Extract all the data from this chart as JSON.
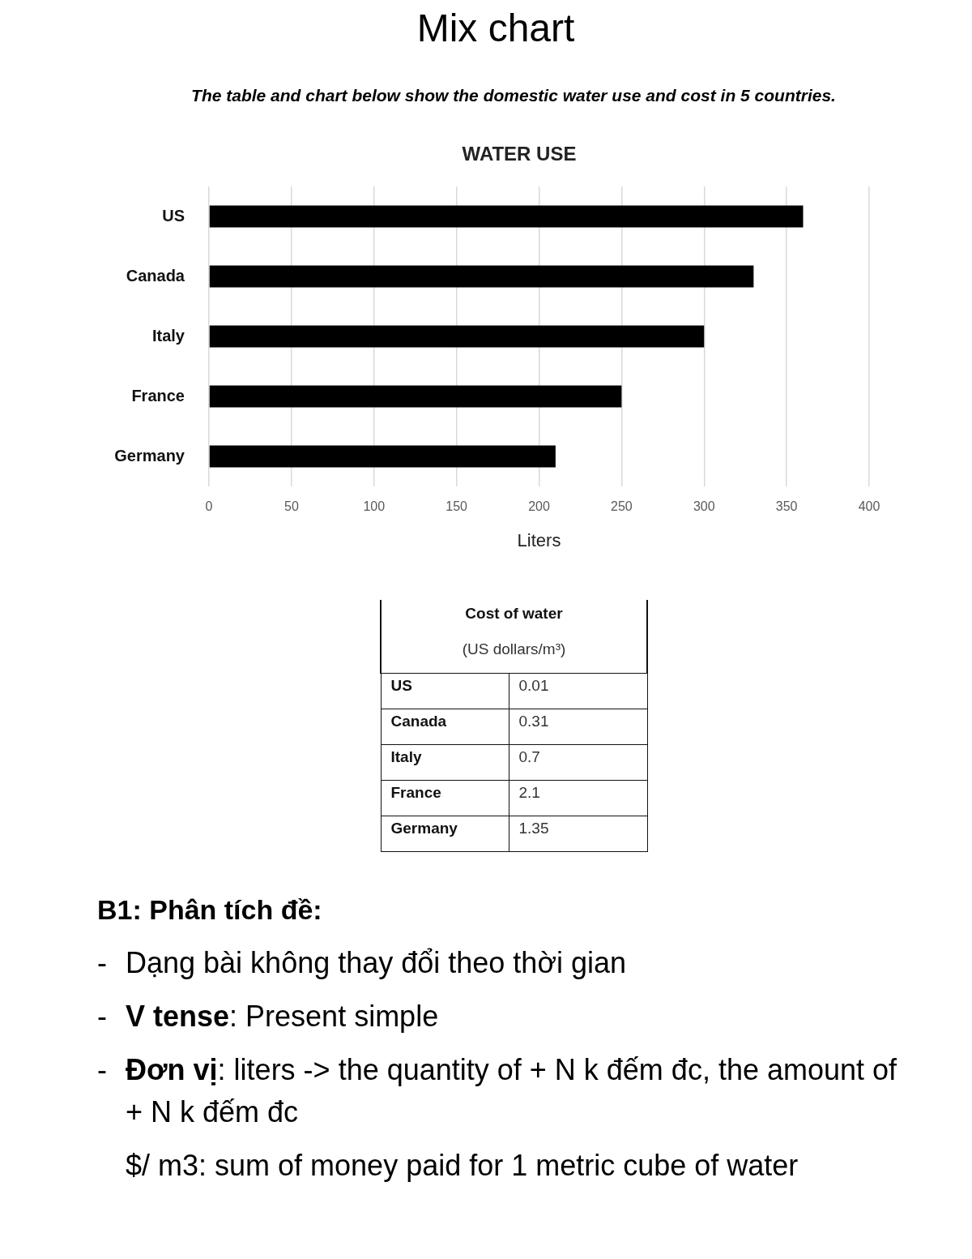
{
  "chart_data": [
    {
      "type": "other",
      "title": "Mix chart",
      "subtitle": "The table and chart below show the domestic water use and cost in 5 countries."
    },
    {
      "type": "bar",
      "title": "WATER USE",
      "xlabel": "Liters",
      "orientation": "horizontal",
      "categories": [
        "US",
        "Canada",
        "Italy",
        "France",
        "Germany"
      ],
      "values": [
        360,
        330,
        300,
        250,
        210
      ],
      "color": "#000000",
      "xlim": [
        0,
        400
      ],
      "xticks": [
        0,
        50,
        100,
        150,
        200,
        250,
        300,
        350,
        400
      ],
      "grid": "x"
    },
    {
      "type": "other",
      "title": "Cost of water",
      "subtitle": "(US dollars/m³)",
      "categories": [
        "US",
        "Canada",
        "Italy",
        "France",
        "Germany"
      ],
      "values": [
        0.01,
        0.31,
        0.7,
        2.1,
        1.35
      ],
      "data_labels": true
    },
    {
      "type": "other",
      "annotations": [
        "B1: Phân tích đề:",
        "- Dạng bài không thay đổi theo thời gian",
        "- V tense: Present simple",
        "- Đơn vị: liters -> the quantity of + N k đếm đc, the amount of + N k đếm đc",
        "$/ m3: sum of money paid for 1 metric cube of water"
      ]
    }
  ]
}
